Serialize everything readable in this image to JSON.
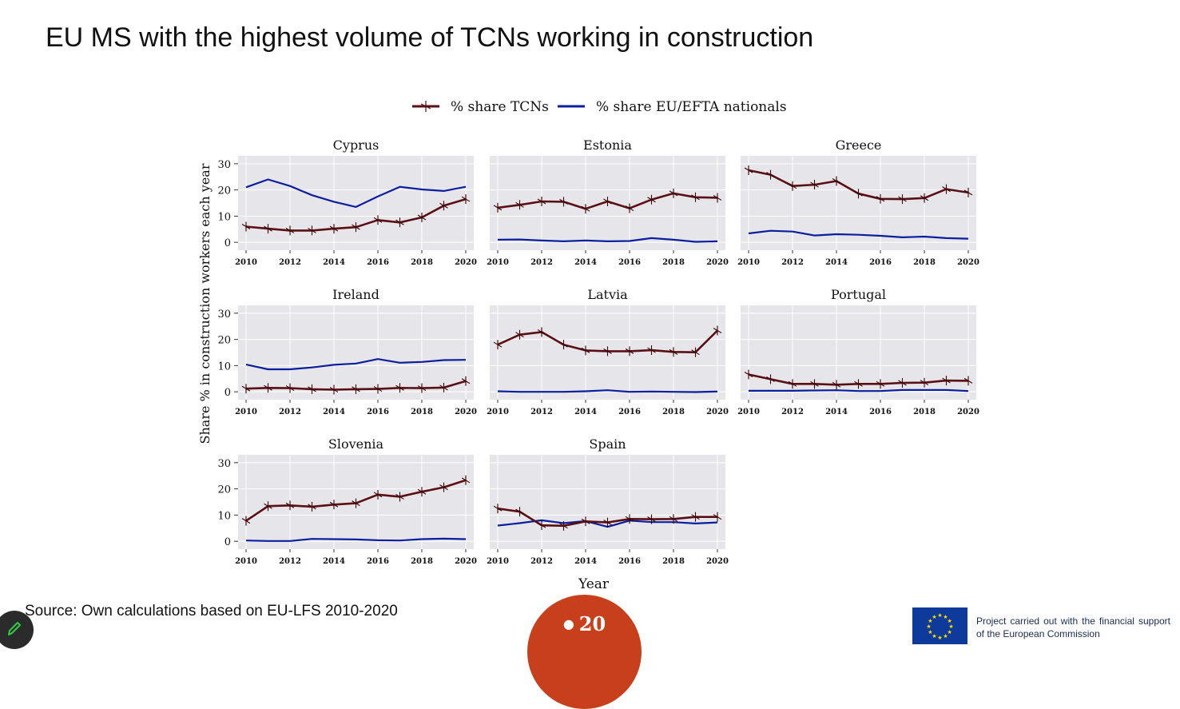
{
  "slide": {
    "title": "EU MS with the highest volume of TCNs working in construction",
    "source": "Source: Own calculations based on EU-LFS 2010-2020",
    "page_number": "20",
    "footer_note": "Project carried out with the financial support of the European Commission"
  },
  "icons": {
    "edit": "pencil-icon",
    "flag": "eu-flag-icon"
  },
  "colors": {
    "tcn": "#5a0f14",
    "eu": "#0b1f9e",
    "panel_bg": "#e6e6ea",
    "badge": "#c8401b"
  },
  "chart_data": {
    "type": "line",
    "ylabel": "Share % in construction workers each year",
    "xlabel": "Year",
    "legend_position": "top-center",
    "ylim": [
      -3,
      33
    ],
    "yticks": [
      0,
      10,
      20,
      30
    ],
    "xticks": [
      2010,
      2012,
      2014,
      2016,
      2018,
      2020
    ],
    "x": [
      2010,
      2011,
      2012,
      2013,
      2014,
      2015,
      2016,
      2017,
      2018,
      2019,
      2020
    ],
    "legend": [
      "% share TCNs",
      "% share EU/EFTA nationals"
    ],
    "panels": [
      {
        "title": "Cyprus",
        "series": [
          {
            "name": "% share TCNs",
            "values": [
              6,
              5.2,
              4.5,
              4.5,
              5.2,
              5.8,
              8.5,
              7.6,
              9.5,
              14,
              16.5
            ]
          },
          {
            "name": "% share EU/EFTA nationals",
            "values": [
              21,
              24,
              21.5,
              18,
              15.5,
              13.5,
              17.5,
              21.2,
              20.2,
              19.6,
              21.2
            ]
          }
        ]
      },
      {
        "title": "Estonia",
        "series": [
          {
            "name": "% share TCNs",
            "values": [
              13.2,
              14.3,
              15.6,
              15.5,
              12.8,
              15.6,
              13,
              16.3,
              18.7,
              17.2,
              17
            ]
          },
          {
            "name": "% share EU/EFTA nationals",
            "values": [
              1,
              1.1,
              0.7,
              0.4,
              0.7,
              0.4,
              0.5,
              1.6,
              1,
              0.2,
              0.4
            ]
          }
        ]
      },
      {
        "title": "Greece",
        "series": [
          {
            "name": "% share TCNs",
            "values": [
              27.5,
              25.8,
              21.5,
              22,
              23.4,
              18.6,
              16.6,
              16.5,
              16.9,
              20.3,
              19
            ]
          },
          {
            "name": "% share EU/EFTA nationals",
            "values": [
              3.4,
              4.4,
              4.1,
              2.6,
              3.1,
              2.9,
              2.5,
              1.9,
              2.2,
              1.6,
              1.4
            ]
          }
        ]
      },
      {
        "title": "Ireland",
        "series": [
          {
            "name": "% share TCNs",
            "values": [
              1.2,
              1.5,
              1.4,
              1,
              0.8,
              1,
              1.1,
              1.5,
              1.4,
              1.6,
              4.1
            ]
          },
          {
            "name": "% share EU/EFTA nationals",
            "values": [
              10.4,
              8.6,
              8.6,
              9.3,
              10.3,
              10.8,
              12.5,
              11.1,
              11.4,
              12.1,
              12.2
            ]
          }
        ]
      },
      {
        "title": "Latvia",
        "series": [
          {
            "name": "% share TCNs",
            "values": [
              18,
              21.8,
              22.8,
              18,
              15.8,
              15.5,
              15.5,
              15.9,
              15.2,
              15.1,
              23.4
            ]
          },
          {
            "name": "% share EU/EFTA nationals",
            "values": [
              0.2,
              0,
              0,
              0,
              0.2,
              0.6,
              0,
              0.1,
              0,
              -0.1,
              0.1
            ]
          }
        ]
      },
      {
        "title": "Portugal",
        "series": [
          {
            "name": "% share TCNs",
            "values": [
              6.6,
              4.8,
              3,
              3,
              2.7,
              3,
              3,
              3.4,
              3.5,
              4.3,
              4.2
            ]
          },
          {
            "name": "% share EU/EFTA nationals",
            "values": [
              0.4,
              0.4,
              0.4,
              0.5,
              0.6,
              0.3,
              0.3,
              0.7,
              0.7,
              0.7,
              0.3
            ]
          }
        ]
      },
      {
        "title": "Slovenia",
        "series": [
          {
            "name": "% share TCNs",
            "values": [
              7.8,
              13.4,
              13.7,
              13.2,
              14,
              14.5,
              17.8,
              17,
              18.9,
              20.6,
              23.3
            ]
          },
          {
            "name": "% share EU/EFTA nationals",
            "values": [
              0.3,
              0.1,
              0.1,
              0.9,
              0.8,
              0.7,
              0.4,
              0.3,
              0.8,
              1,
              0.8
            ]
          }
        ]
      },
      {
        "title": "Spain",
        "series": [
          {
            "name": "% share TCNs",
            "values": [
              12.5,
              11.3,
              6.1,
              5.9,
              7.6,
              7.2,
              8.5,
              8.4,
              8.5,
              9.3,
              9.3
            ]
          },
          {
            "name": "% share EU/EFTA nationals",
            "values": [
              6,
              6.9,
              8,
              6.9,
              7.7,
              5.5,
              7.9,
              7.3,
              7.3,
              6.8,
              7.2
            ]
          }
        ]
      }
    ]
  }
}
